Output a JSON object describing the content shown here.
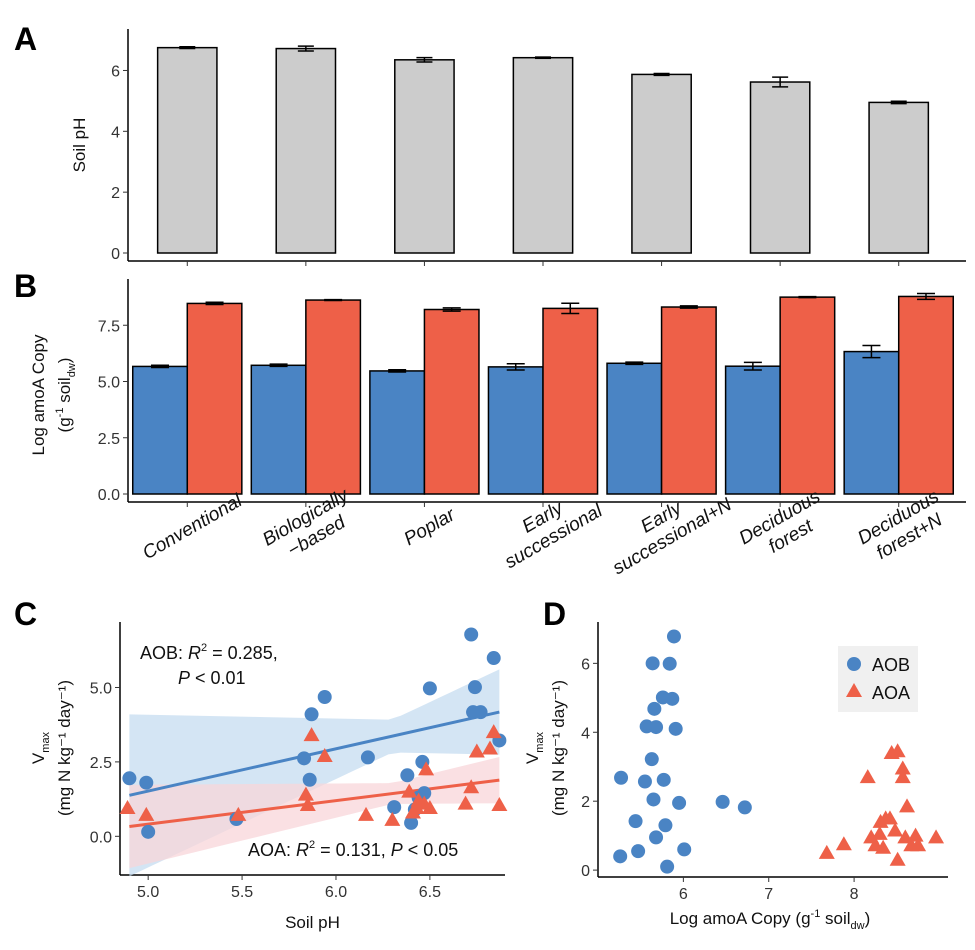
{
  "chart_data": [
    {
      "panel": "A",
      "type": "bar",
      "categories": [
        "Conventional",
        "Biologically\n−based",
        "Poplar",
        "Early\nsuccessional",
        "Early\nsuccessional+N",
        "Deciduous\nforest",
        "Deciduous\nforest+N"
      ],
      "values": [
        6.75,
        6.72,
        6.35,
        6.42,
        5.87,
        5.62,
        4.95
      ],
      "errors": [
        0.03,
        0.08,
        0.07,
        0.02,
        0.03,
        0.16,
        0.04
      ],
      "ylabel": "Soil pH",
      "ylim": [
        0,
        7.1
      ],
      "yticks": [
        0,
        2,
        4,
        6
      ],
      "color": "#cccccc"
    },
    {
      "panel": "B",
      "type": "bar",
      "categories": [
        "Conventional",
        "Biologically\n−based",
        "Poplar",
        "Early\nsuccessional",
        "Early\nsuccessional+N",
        "Deciduous\nforest",
        "Deciduous\nforest+N"
      ],
      "series": [
        {
          "name": "AOB",
          "color": "#4a84c4",
          "values": [
            5.67,
            5.72,
            5.47,
            5.65,
            5.81,
            5.68,
            6.33
          ],
          "errors": [
            0.05,
            0.05,
            0.05,
            0.14,
            0.05,
            0.17,
            0.27
          ]
        },
        {
          "name": "AOA",
          "color": "#ee6048",
          "values": [
            8.47,
            8.62,
            8.2,
            8.25,
            8.31,
            8.75,
            8.78
          ],
          "errors": [
            0.05,
            0.02,
            0.07,
            0.23,
            0.05,
            0.02,
            0.13
          ]
        }
      ],
      "ylabel_line1": "Log amoA Copy",
      "ylabel_line2_pre": "(g",
      "ylabel_line2_sup": "-1",
      "ylabel_line2_mid": " soil",
      "ylabel_line2_sub": "dw",
      "ylabel_line2_post": ")",
      "ylim": [
        0,
        9.2
      ],
      "yticks": [
        "0.0",
        "2.5",
        "5.0",
        "7.5"
      ]
    },
    {
      "panel": "C",
      "type": "scatter",
      "xlabel": "Soil pH",
      "ylabel_main": "V",
      "ylabel_sub": "max",
      "ylabel_units": "(mg N kg⁻¹ day⁻¹)",
      "xlim": [
        4.85,
        6.9
      ],
      "ylim": [
        -1.3,
        7.2
      ],
      "xticks": [
        "5.0",
        "5.5",
        "6.0",
        "6.5"
      ],
      "yticks": [
        "0.0",
        "2.5",
        "5.0"
      ],
      "series": [
        {
          "name": "AOB",
          "marker": "circle",
          "color": "#4a84c4",
          "fit": {
            "intercept": -5.58,
            "slope": 1.42
          },
          "band_color": "#c6dcf0",
          "points": [
            [
              4.9,
              1.95
            ],
            [
              4.99,
              1.8
            ],
            [
              5.0,
              0.15
            ],
            [
              5.47,
              0.58
            ],
            [
              5.83,
              2.62
            ],
            [
              5.86,
              1.9
            ],
            [
              5.87,
              4.1
            ],
            [
              5.94,
              4.68
            ],
            [
              6.17,
              2.65
            ],
            [
              6.31,
              0.98
            ],
            [
              6.38,
              2.05
            ],
            [
              6.4,
              0.45
            ],
            [
              6.42,
              0.9
            ],
            [
              6.44,
              1.3
            ],
            [
              6.46,
              2.5
            ],
            [
              6.47,
              1.45
            ],
            [
              6.5,
              4.97
            ],
            [
              6.72,
              6.78
            ],
            [
              6.73,
              4.17
            ],
            [
              6.74,
              5.01
            ],
            [
              6.77,
              4.17
            ],
            [
              6.84,
              5.99
            ],
            [
              6.87,
              3.22
            ]
          ]
        },
        {
          "name": "AOA",
          "marker": "triangle",
          "color": "#ee6048",
          "fit": {
            "intercept": -3.54,
            "slope": 0.79
          },
          "band_color": "#f8d5da",
          "points": [
            [
              4.89,
              0.95
            ],
            [
              4.99,
              0.72
            ],
            [
              5.48,
              0.72
            ],
            [
              5.84,
              1.4
            ],
            [
              5.85,
              1.05
            ],
            [
              5.87,
              3.4
            ],
            [
              5.94,
              2.7
            ],
            [
              6.16,
              0.72
            ],
            [
              6.3,
              0.55
            ],
            [
              6.39,
              1.5
            ],
            [
              6.41,
              0.8
            ],
            [
              6.43,
              0.95
            ],
            [
              6.44,
              1.2
            ],
            [
              6.47,
              1.1
            ],
            [
              6.48,
              2.25
            ],
            [
              6.5,
              0.95
            ],
            [
              6.69,
              1.1
            ],
            [
              6.72,
              1.65
            ],
            [
              6.75,
              2.85
            ],
            [
              6.82,
              2.95
            ],
            [
              6.84,
              3.5
            ],
            [
              6.87,
              1.05
            ]
          ]
        }
      ],
      "annotations": [
        {
          "series": "AOB",
          "lab": "AOB: ",
          "r": "R",
          "sup": "2",
          "eq": " = 0.285,",
          "p": "P",
          "pval": " < 0.01"
        },
        {
          "series": "AOA",
          "lab": "AOA: ",
          "r": "R",
          "sup": "2",
          "eq": " = 0.131, ",
          "p": "P",
          "pval": " < 0.05"
        }
      ]
    },
    {
      "panel": "D",
      "type": "scatter",
      "xlabel_pre": "Log amoA Copy (g",
      "xlabel_sup": "-1",
      "xlabel_mid": " soil",
      "xlabel_sub": "dw",
      "xlabel_post": ")",
      "ylabel_main": "V",
      "ylabel_sub": "max",
      "ylabel_units": "(mg N kg⁻¹ day⁻¹)",
      "xlim": [
        5.0,
        9.1
      ],
      "ylim": [
        -0.2,
        7.2
      ],
      "xticks": [
        "6",
        "7",
        "8"
      ],
      "yticks": [
        "0",
        "2",
        "4",
        "6"
      ],
      "legend_position": "top-right",
      "series": [
        {
          "name": "AOB",
          "marker": "circle",
          "color": "#4a84c4",
          "points": [
            [
              5.27,
              2.68
            ],
            [
              5.26,
              0.4
            ],
            [
              5.44,
              1.42
            ],
            [
              5.47,
              0.55
            ],
            [
              5.55,
              2.57
            ],
            [
              5.57,
              4.17
            ],
            [
              5.63,
              3.22
            ],
            [
              5.64,
              6.0
            ],
            [
              5.65,
              2.05
            ],
            [
              5.66,
              4.68
            ],
            [
              5.68,
              4.15
            ],
            [
              5.68,
              0.95
            ],
            [
              5.76,
              5.01
            ],
            [
              5.77,
              2.62
            ],
            [
              5.79,
              1.3
            ],
            [
              5.81,
              0.1
            ],
            [
              5.84,
              5.99
            ],
            [
              5.87,
              4.97
            ],
            [
              5.89,
              6.78
            ],
            [
              5.91,
              4.1
            ],
            [
              5.95,
              1.95
            ],
            [
              6.01,
              0.6
            ],
            [
              6.46,
              1.98
            ],
            [
              6.72,
              1.82
            ]
          ]
        },
        {
          "name": "AOA",
          "marker": "triangle",
          "color": "#ee6048",
          "points": [
            [
              7.68,
              0.5
            ],
            [
              7.88,
              0.75
            ],
            [
              8.16,
              2.7
            ],
            [
              8.2,
              0.95
            ],
            [
              8.25,
              0.72
            ],
            [
              8.3,
              1.05
            ],
            [
              8.31,
              1.4
            ],
            [
              8.34,
              0.65
            ],
            [
              8.37,
              1.5
            ],
            [
              8.42,
              1.5
            ],
            [
              8.44,
              3.4
            ],
            [
              8.48,
              1.15
            ],
            [
              8.51,
              3.45
            ],
            [
              8.51,
              0.3
            ],
            [
              8.57,
              2.95
            ],
            [
              8.57,
              2.7
            ],
            [
              8.6,
              0.95
            ],
            [
              8.62,
              1.85
            ],
            [
              8.67,
              0.72
            ],
            [
              8.72,
              1.0
            ],
            [
              8.75,
              0.72
            ],
            [
              8.96,
              0.95
            ]
          ]
        }
      ]
    }
  ],
  "panel_labels": {
    "A": "A",
    "B": "B",
    "C": "C",
    "D": "D"
  },
  "legend": {
    "aob": "AOB",
    "aoa": "AOA"
  }
}
